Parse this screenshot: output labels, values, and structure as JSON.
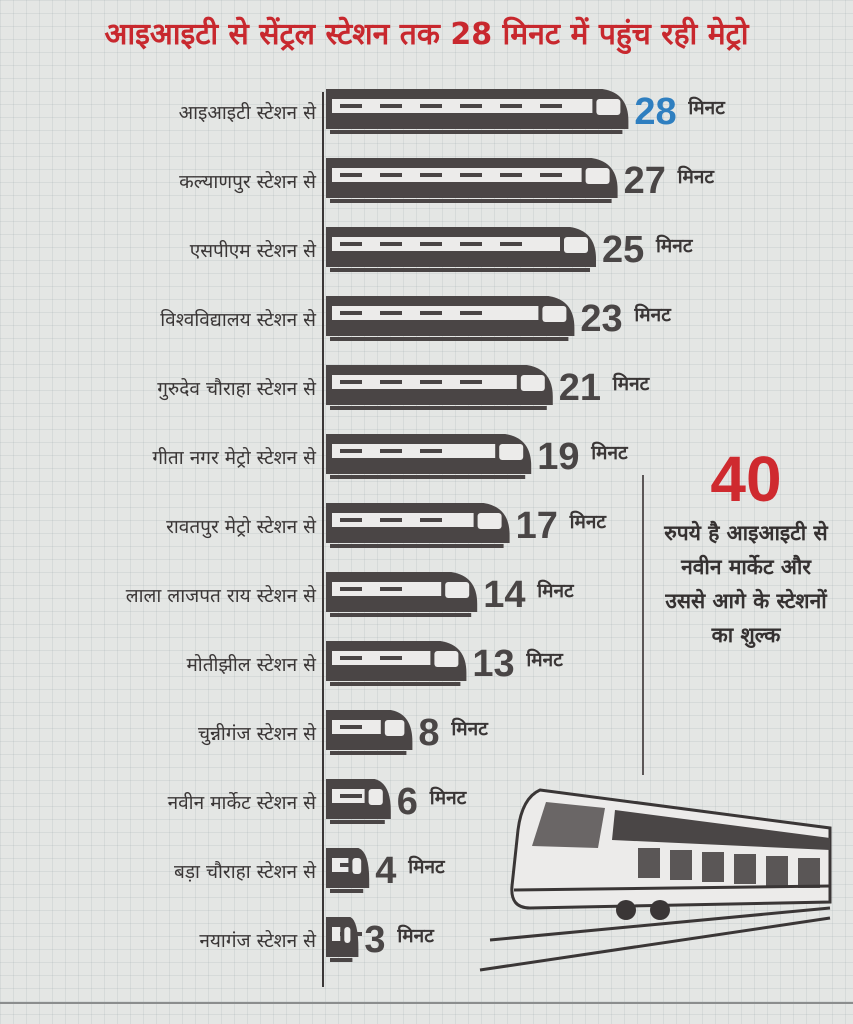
{
  "title": "आइआइटी से सेंट्रल स्टेशन तक 28 मिनट में पहुंच रही मेट्रो",
  "chart_data": {
    "type": "bar",
    "orientation": "horizontal",
    "title": "आइआइटी से सेंट्रल स्टेशन तक 28 मिनट में पहुंच रही मेट्रो",
    "unit": "मिनट",
    "categories": [
      "आइआइटी स्टेशन से",
      "कल्याणपुर स्टेशन से",
      "एसपीएम स्टेशन से",
      "विश्वविद्यालय स्टेशन से",
      "गुरुदेव चौराहा स्टेशन से",
      "गीता नगर मेट्रो स्टेशन से",
      "रावतपुर मेट्रो स्टेशन से",
      "लाला लाजपत राय स्टेशन से",
      "मोतीझील स्टेशन से",
      "चुन्नीगंज स्टेशन से",
      "नवीन मार्केट स्टेशन से",
      "बड़ा चौराहा स्टेशन से",
      "नयागंज स्टेशन से"
    ],
    "values": [
      28,
      27,
      25,
      23,
      21,
      19,
      17,
      14,
      13,
      8,
      6,
      4,
      3
    ],
    "highlight_color": "#2f7fc0",
    "bar_color": "#4a4545"
  },
  "fare_note": {
    "amount": "40",
    "text": "रुपये है आइआइटी से नवीन मार्केट और उससे आगे के स्टेशनों का शुल्क"
  }
}
